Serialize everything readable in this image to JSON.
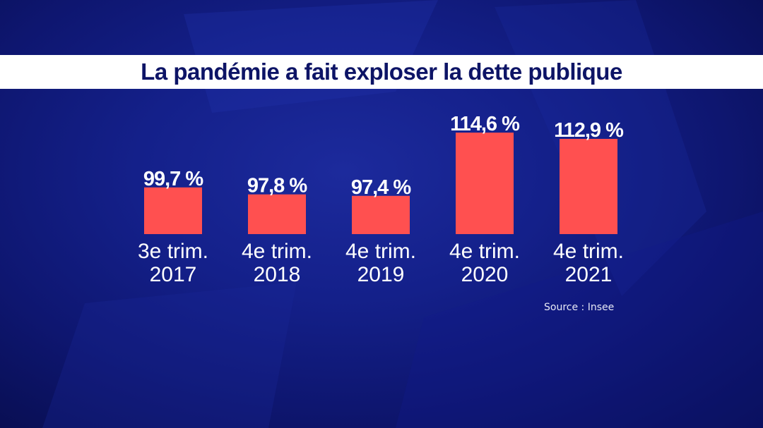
{
  "chart_data": {
    "type": "bar",
    "title": "La pandémie a fait exploser la dette publique",
    "categories": [
      [
        "3e trim.",
        "2017"
      ],
      [
        "4e trim.",
        "2018"
      ],
      [
        "4e trim.",
        "2019"
      ],
      [
        "4e trim.",
        "2020"
      ],
      [
        "4e trim.",
        "2021"
      ]
    ],
    "values": [
      99.7,
      97.8,
      97.4,
      114.6,
      112.9
    ],
    "value_labels": [
      "99,7 %",
      "97,8 %",
      "97,4 %",
      "114,6 %",
      "112,9 %"
    ],
    "ylim": [
      87,
      115
    ],
    "xlabel": "",
    "ylabel": "",
    "bar_color": "#ff5050",
    "grid": false
  },
  "source": "Source : Insee",
  "colors": {
    "background": "#14208a",
    "title_band": "#ffffff",
    "title_text": "#0d1466",
    "label_text": "#ffffff"
  }
}
